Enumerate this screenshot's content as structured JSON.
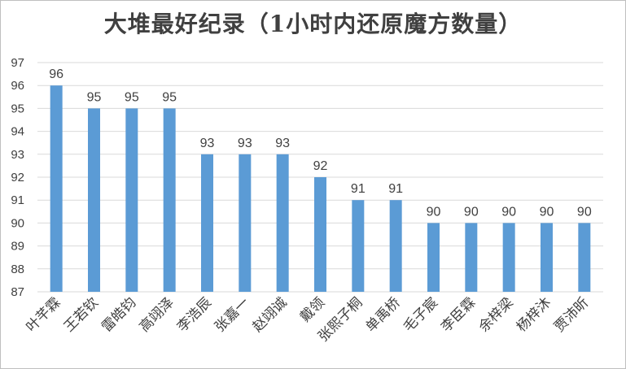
{
  "chart_data": {
    "type": "bar",
    "title": "大堆最好纪录（1小时内还原魔方数量）",
    "xlabel": "",
    "ylabel": "",
    "ylim": [
      87,
      97
    ],
    "yticks": [
      87,
      88,
      89,
      90,
      91,
      92,
      93,
      94,
      95,
      96,
      97
    ],
    "ytick_labels": [
      "87",
      "88",
      "89",
      "90",
      "91",
      "92",
      "93",
      "94",
      "95",
      "96",
      "97"
    ],
    "grid": true,
    "legend": "none",
    "bar_color": "#5b9bd5",
    "categories": [
      "叶芊霖",
      "王若钦",
      "雷皓钧",
      "高翊泽",
      "李浩辰",
      "张嘉一",
      "赵翊诚",
      "戴领",
      "张熙子桐",
      "单禹桥",
      "毛子宸",
      "李臣霖",
      "余梓梁",
      "杨梓沐",
      "贾沛昕"
    ],
    "values": [
      96,
      95,
      95,
      95,
      93,
      93,
      93,
      92,
      91,
      91,
      90,
      90,
      90,
      90,
      90
    ],
    "data_labels": [
      "96",
      "95",
      "95",
      "95",
      "93",
      "93",
      "93",
      "92",
      "91",
      "91",
      "90",
      "90",
      "90",
      "90",
      "90"
    ]
  }
}
